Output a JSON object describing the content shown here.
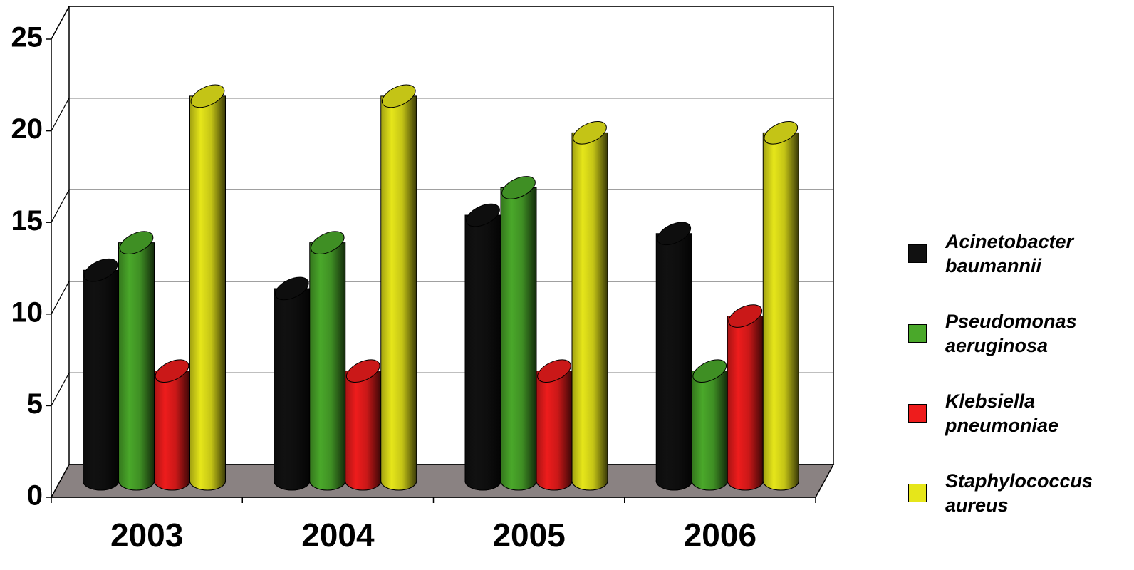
{
  "chart_data": {
    "type": "bar3d",
    "categories": [
      "2003",
      "2004",
      "2005",
      "2006"
    ],
    "series": [
      {
        "name": "Acinetobacter baumannii",
        "color": "#111111",
        "values": [
          11.5,
          10.5,
          14.5,
          13.5
        ]
      },
      {
        "name": "Pseudomonas aeruginosa",
        "color": "#4aa82a",
        "values": [
          13,
          13,
          16,
          6
        ]
      },
      {
        "name": "Klebsiella pneumoniae",
        "color": "#ee1c1c",
        "values": [
          6,
          6,
          6,
          9
        ]
      },
      {
        "name": "Staphylococcus aureus",
        "color": "#e6e61a",
        "values": [
          21,
          21,
          19,
          19
        ]
      }
    ],
    "ylim": [
      0,
      25
    ],
    "yticks": [
      0,
      5,
      10,
      15,
      20,
      25
    ],
    "grid": true,
    "legend": "right"
  }
}
